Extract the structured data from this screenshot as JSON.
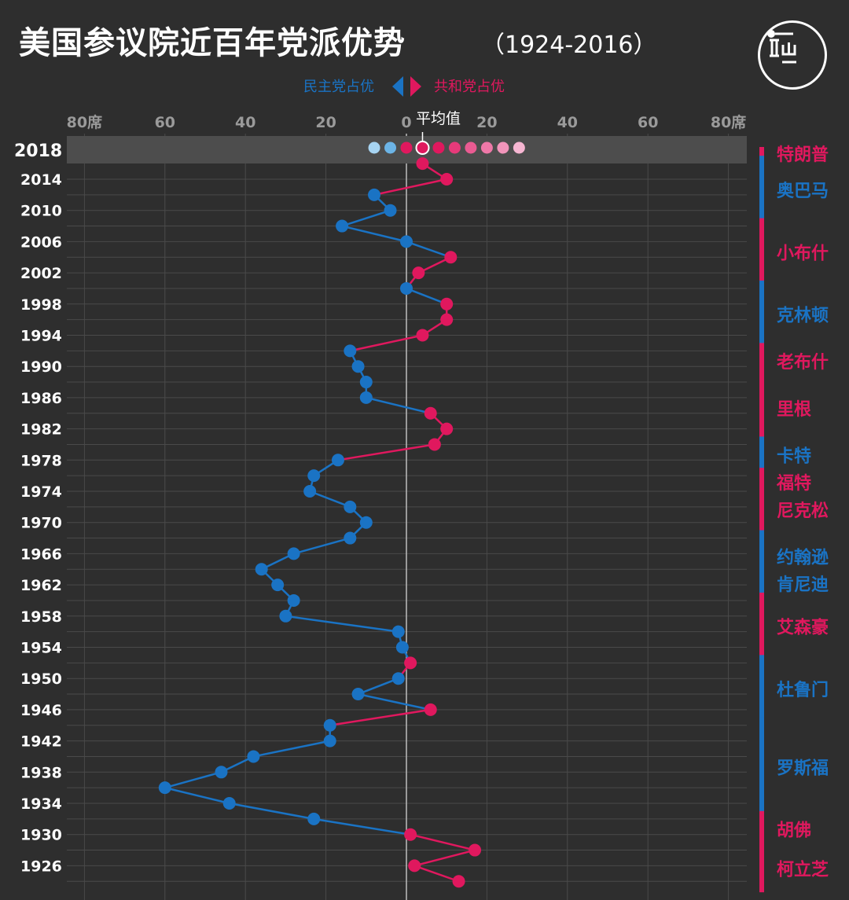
{
  "header": {
    "title": "美国参议院近百年党派优势",
    "subtitle": "（1924-2016）"
  },
  "legend": {
    "dem_label": "民主党占优",
    "rep_label": "共和党占优"
  },
  "colors": {
    "background": "#2e2e2e",
    "democrat": "#1a73c4",
    "republican": "#e0185e",
    "grid": "#4a4a4a",
    "highlight_band": "#4d4d4d"
  },
  "chart_data": {
    "type": "line",
    "xlabel": "",
    "ylabel": "",
    "x_ticks": [
      "80席",
      "60",
      "40",
      "20",
      "0",
      "20",
      "40",
      "60",
      "80席"
    ],
    "x_tick_values": [
      -80,
      -60,
      -40,
      -20,
      0,
      20,
      40,
      60,
      80
    ],
    "xlim": [
      -84,
      84
    ],
    "average_label": "平均值",
    "average_value": 4,
    "y_tick_labels": [
      "2018",
      "2014",
      "2010",
      "2006",
      "2002",
      "1998",
      "1994",
      "1990",
      "1986",
      "1982",
      "1978",
      "1974",
      "1970",
      "1966",
      "1962",
      "1958",
      "1954",
      "1950",
      "1946",
      "1942",
      "1938",
      "1934",
      "1930",
      "1926"
    ],
    "series": [
      {
        "x": [
          2016,
          2014,
          2012,
          2010,
          2008,
          2006,
          2004,
          2002,
          2000,
          1998,
          1996,
          1994,
          1992,
          1990,
          1988,
          1986,
          1984,
          1982,
          1980,
          1978,
          1976,
          1974,
          1972,
          1970,
          1968,
          1966,
          1964,
          1962,
          1960,
          1958,
          1956,
          1954,
          1952,
          1950,
          1948,
          1946,
          1944,
          1942,
          1940,
          1938,
          1936,
          1934,
          1932,
          1930,
          1928,
          1926,
          1924
        ],
        "values": [
          4,
          10,
          -8,
          -4,
          -16,
          0,
          11,
          3,
          0,
          10,
          10,
          4,
          -14,
          -12,
          -10,
          -10,
          6,
          10,
          7,
          -17,
          -23,
          -24,
          -14,
          -10,
          -14,
          -28,
          -36,
          -32,
          -28,
          -30,
          -2,
          -1,
          1,
          -2,
          -12,
          6,
          -19,
          -19,
          -38,
          -46,
          -60,
          -44,
          -23,
          1,
          17,
          2,
          13
        ]
      }
    ],
    "projection_2018": {
      "year": "2018",
      "values": [
        -8,
        -4,
        0,
        4,
        8,
        12,
        16,
        20,
        24,
        28
      ]
    },
    "presidents": [
      {
        "name": "特朗普",
        "party": "R"
      },
      {
        "name": "奥巴马",
        "party": "D"
      },
      {
        "name": "小布什",
        "party": "R"
      },
      {
        "name": "克林顿",
        "party": "D"
      },
      {
        "name": "老布什",
        "party": "R"
      },
      {
        "name": "里根",
        "party": "R"
      },
      {
        "name": "卡特",
        "party": "D"
      },
      {
        "name": "福特",
        "party": "R"
      },
      {
        "name": "尼克松",
        "party": "R"
      },
      {
        "name": "约翰逊",
        "party": "D"
      },
      {
        "name": "肯尼迪",
        "party": "D"
      },
      {
        "name": "艾森豪",
        "party": "R"
      },
      {
        "name": "杜鲁门",
        "party": "D"
      },
      {
        "name": "罗斯福",
        "party": "D"
      },
      {
        "name": "胡佛",
        "party": "R"
      },
      {
        "name": "柯立芝",
        "party": "R"
      }
    ]
  }
}
